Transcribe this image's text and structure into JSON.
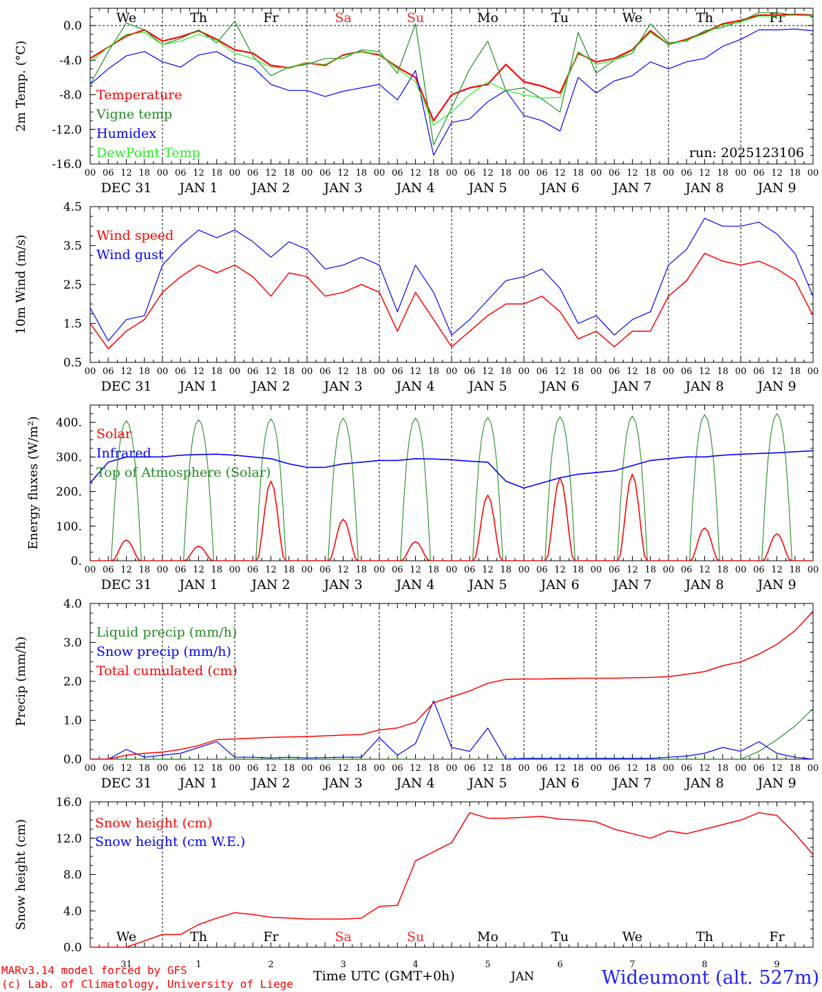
{
  "header": {
    "weekdays": [
      "We",
      "Th",
      "Fr",
      "Sa",
      "Su",
      "Mo",
      "Tu",
      "We",
      "Th",
      "Fr"
    ],
    "weekend_color": "#ff2020",
    "hour_ticks": [
      "00",
      "06",
      "12",
      "18"
    ],
    "last_hour": "00",
    "date_labels": [
      "DEC 31",
      "JAN  1",
      "JAN  2",
      "JAN  3",
      "JAN  4",
      "JAN  5",
      "JAN  6",
      "JAN  7",
      "JAN  8",
      "JAN  9"
    ],
    "day_numbers": [
      "31",
      "1",
      "2",
      "3",
      "4",
      "5",
      "6",
      "7",
      "8",
      "9"
    ],
    "month_label": "JAN"
  },
  "run_label": "run: 2025123106",
  "footer": {
    "credit1": "MARv3.14 model forced by GFS",
    "credit2": "(c) Lab. of Climatology, University of Liege",
    "xlabel": "Time UTC (GMT+0h)",
    "station": "Wideumont (alt. 527m)"
  },
  "chart_data": [
    {
      "type": "line",
      "id": "temp",
      "ylabel": "2m Temp. (°C)",
      "ylim": [
        -16,
        2
      ],
      "yticks": [
        "0.0",
        "-4.0",
        "-8.0",
        "-12.0",
        "-16.0"
      ],
      "ytick_values": [
        0,
        -4,
        -8,
        -12,
        -16
      ],
      "zero_line": true,
      "x_hours": [
        0,
        6,
        12,
        18,
        24,
        30,
        36,
        42,
        48,
        54,
        60,
        66,
        72,
        78,
        84,
        90,
        96,
        102,
        108,
        114,
        120,
        126,
        132,
        138,
        144,
        150,
        156,
        162,
        168,
        174,
        180,
        186,
        192,
        198,
        204,
        210,
        216,
        222,
        228,
        234,
        240
      ],
      "series": [
        {
          "name": "Temperature",
          "color": "#ff0000",
          "values": [
            -3.8,
            -2.5,
            -1.2,
            -0.5,
            -1.8,
            -1.3,
            -0.6,
            -1.6,
            -2.8,
            -3.2,
            -4.6,
            -4.9,
            -4.3,
            -4.6,
            -3.4,
            -3.0,
            -3.4,
            -4.8,
            -6.0,
            -11.0,
            -8.0,
            -7.2,
            -6.8,
            -4.5,
            -6.5,
            -7.0,
            -7.8,
            -3.2,
            -4.2,
            -3.8,
            -2.8,
            -0.6,
            -2.2,
            -1.6,
            -0.8,
            0.2,
            0.6,
            1.2,
            1.2,
            1.3,
            1.2
          ]
        },
        {
          "name": "Vigne temp",
          "color": "#228b22",
          "values": [
            -6.8,
            -3.0,
            0.3,
            -0.5,
            -2.2,
            -1.5,
            -0.5,
            -2.0,
            0.5,
            -3.5,
            -5.8,
            -4.8,
            -4.5,
            -3.8,
            -3.8,
            -2.8,
            -3.0,
            -5.5,
            0.2,
            -13.8,
            -9.5,
            -5.0,
            -1.8,
            -7.5,
            -7.2,
            -8.5,
            -10.0,
            -0.8,
            -5.5,
            -4.0,
            -3.2,
            0.2,
            -2.0,
            -1.8,
            -0.6,
            -0.2,
            0.5,
            1.5,
            1.5,
            1.2,
            1.2
          ]
        },
        {
          "name": "Humidex",
          "color": "#0000ff",
          "values": [
            -6.8,
            -5.0,
            -3.5,
            -3.0,
            -4.2,
            -4.8,
            -3.4,
            -3.0,
            -4.2,
            -4.8,
            -6.8,
            -7.5,
            -7.5,
            -8.2,
            -7.6,
            -7.2,
            -6.8,
            -8.6,
            -5.2,
            -15.0,
            -11.2,
            -10.8,
            -8.8,
            -7.5,
            -10.4,
            -11.0,
            -12.2,
            -6.0,
            -7.8,
            -6.4,
            -5.8,
            -4.2,
            -5.0,
            -4.2,
            -3.8,
            -2.4,
            -1.6,
            -0.5,
            -0.5,
            -0.4,
            -0.6
          ]
        },
        {
          "name": "DewPoint Temp",
          "color": "#20ee20",
          "values": [
            -4.2,
            -2.5,
            -1.0,
            -0.8,
            -2.2,
            -1.8,
            -1.0,
            -1.7,
            -3.2,
            -3.8,
            -4.8,
            -4.9,
            -4.3,
            -4.5,
            -3.5,
            -3.0,
            -3.3,
            -5.0,
            -6.5,
            -11.5,
            -10.0,
            -8.0,
            -6.5,
            -7.5,
            -8.0,
            -8.4,
            -8.3,
            -3.0,
            -4.5,
            -4.0,
            -2.9,
            -0.8,
            -2.2,
            -1.7,
            -0.9,
            0.1,
            0.4,
            1.1,
            1.1,
            1.2,
            1.1
          ]
        }
      ]
    },
    {
      "type": "line",
      "id": "wind",
      "ylabel": "10m Wind (m/s)",
      "ylim": [
        0.5,
        4.5
      ],
      "yticks": [
        "4.5",
        "3.5",
        "2.5",
        "1.5",
        "0.5"
      ],
      "ytick_values": [
        4.5,
        3.5,
        2.5,
        1.5,
        0.5
      ],
      "x_hours": [
        0,
        6,
        12,
        18,
        24,
        30,
        36,
        42,
        48,
        54,
        60,
        66,
        72,
        78,
        84,
        90,
        96,
        102,
        108,
        114,
        120,
        126,
        132,
        138,
        144,
        150,
        156,
        162,
        168,
        174,
        180,
        186,
        192,
        198,
        204,
        210,
        216,
        222,
        228,
        234,
        240
      ],
      "series": [
        {
          "name": "Wind speed",
          "color": "#ff0000",
          "values": [
            1.5,
            0.85,
            1.3,
            1.6,
            2.3,
            2.7,
            3.0,
            2.8,
            3.0,
            2.7,
            2.2,
            2.8,
            2.7,
            2.2,
            2.3,
            2.5,
            2.3,
            1.3,
            2.3,
            1.6,
            0.9,
            1.3,
            1.7,
            2.0,
            2.0,
            2.2,
            1.8,
            1.1,
            1.3,
            0.9,
            1.3,
            1.3,
            2.2,
            2.6,
            3.3,
            3.1,
            3.0,
            3.1,
            2.9,
            2.6,
            1.7
          ]
        },
        {
          "name": "Wind gust",
          "color": "#0000ff",
          "values": [
            1.9,
            1.05,
            1.6,
            1.7,
            3.0,
            3.5,
            3.9,
            3.7,
            3.9,
            3.6,
            3.2,
            3.6,
            3.4,
            2.9,
            3.0,
            3.2,
            3.0,
            1.8,
            3.0,
            2.3,
            1.2,
            1.6,
            2.1,
            2.6,
            2.7,
            2.9,
            2.4,
            1.5,
            1.7,
            1.2,
            1.6,
            1.8,
            3.0,
            3.4,
            4.2,
            4.0,
            4.0,
            4.1,
            3.8,
            3.3,
            2.2
          ]
        }
      ]
    },
    {
      "type": "line",
      "id": "flux",
      "ylabel": "Energy fluxes (W/m²)",
      "ylim": [
        0,
        450
      ],
      "yticks": [
        "400.",
        "300.",
        "200.",
        "100.",
        "0."
      ],
      "ytick_values": [
        400,
        300,
        200,
        100,
        0
      ],
      "solar_peaks": [
        60,
        42,
        230,
        120,
        55,
        190,
        240,
        250,
        95,
        78
      ],
      "toa_peaks": [
        405,
        408,
        410,
        412,
        412,
        414,
        416,
        418,
        422,
        425
      ],
      "infrared_hours": [
        0,
        6,
        12,
        18,
        24,
        30,
        36,
        42,
        48,
        54,
        60,
        66,
        72,
        78,
        84,
        90,
        96,
        102,
        108,
        114,
        120,
        126,
        132,
        138,
        144,
        150,
        156,
        162,
        168,
        174,
        180,
        186,
        192,
        198,
        204,
        210,
        216,
        222,
        228,
        234,
        240
      ],
      "infrared_values": [
        225,
        285,
        300,
        300,
        300,
        305,
        307,
        308,
        305,
        300,
        295,
        280,
        270,
        270,
        280,
        285,
        290,
        290,
        295,
        294,
        292,
        288,
        285,
        230,
        210,
        225,
        240,
        250,
        255,
        260,
        275,
        290,
        295,
        300,
        300,
        305,
        308,
        310,
        312,
        315,
        318
      ],
      "series": [
        {
          "name": "Solar",
          "color": "#ff0000"
        },
        {
          "name": "Infrared",
          "color": "#0000ff"
        },
        {
          "name": "Top of Atmosphere (Solar)",
          "color": "#228b22"
        }
      ]
    },
    {
      "type": "line",
      "id": "precip",
      "ylabel": "Precip (mm/h)",
      "ylim": [
        0,
        4
      ],
      "yticks": [
        "4.0",
        "3.0",
        "2.0",
        "1.0",
        "0.0"
      ],
      "ytick_values": [
        4,
        3,
        2,
        1,
        0
      ],
      "x_hours": [
        0,
        6,
        12,
        18,
        24,
        30,
        36,
        42,
        48,
        54,
        60,
        66,
        72,
        78,
        84,
        90,
        96,
        102,
        108,
        114,
        120,
        126,
        132,
        138,
        144,
        150,
        156,
        162,
        168,
        174,
        180,
        186,
        192,
        198,
        204,
        210,
        216,
        222,
        228,
        234,
        240
      ],
      "series": [
        {
          "name": "Liquid precip (mm/h)",
          "color": "#228b22",
          "values": [
            0,
            0,
            0,
            0,
            0,
            0,
            0,
            0,
            0,
            0,
            0,
            0,
            0,
            0,
            0,
            0,
            0,
            0,
            0,
            0,
            0,
            0,
            0,
            0,
            0,
            0,
            0,
            0,
            0,
            0,
            0,
            0,
            0,
            0,
            0,
            0,
            0,
            0.2,
            0.5,
            0.85,
            1.3
          ]
        },
        {
          "name": "Snow precip (mm/h)",
          "color": "#0000ff",
          "values": [
            0,
            0,
            0.25,
            0.05,
            0.1,
            0.15,
            0.3,
            0.45,
            0.05,
            0.05,
            0.03,
            0.05,
            0.03,
            0.04,
            0.05,
            0.05,
            0.55,
            0.1,
            0.4,
            1.5,
            0.3,
            0.2,
            0.8,
            0,
            0.02,
            0.02,
            0.02,
            0.02,
            0.02,
            0.02,
            0.02,
            0.02,
            0.05,
            0.08,
            0.15,
            0.3,
            0.2,
            0.45,
            0.15,
            0.05,
            0
          ]
        },
        {
          "name": "Total cumulated (cm)",
          "color": "#ff0000",
          "values": [
            0,
            0,
            0.1,
            0.15,
            0.18,
            0.25,
            0.35,
            0.5,
            0.52,
            0.54,
            0.56,
            0.57,
            0.58,
            0.6,
            0.62,
            0.63,
            0.75,
            0.8,
            0.95,
            1.45,
            1.6,
            1.75,
            1.95,
            2.05,
            2.06,
            2.06,
            2.07,
            2.08,
            2.08,
            2.08,
            2.09,
            2.1,
            2.12,
            2.18,
            2.25,
            2.4,
            2.5,
            2.7,
            2.95,
            3.3,
            3.8
          ]
        }
      ]
    },
    {
      "type": "line",
      "id": "snow",
      "ylabel": "Snow height (cm)",
      "ylim": [
        0,
        16
      ],
      "yticks": [
        "16.0",
        "12.0",
        "8.0",
        "4.0",
        "0.0"
      ],
      "ytick_values": [
        16,
        12,
        8,
        4,
        0
      ],
      "x_hours": [
        0,
        6,
        12,
        18,
        24,
        30,
        36,
        42,
        48,
        54,
        60,
        66,
        72,
        78,
        84,
        90,
        96,
        102,
        108,
        114,
        120,
        126,
        132,
        138,
        144,
        150,
        156,
        162,
        168,
        174,
        180,
        186,
        192,
        198,
        204,
        210,
        216,
        222,
        228,
        234,
        240
      ],
      "series": [
        {
          "name": "Snow height (cm)",
          "color": "#ff0000",
          "values": [
            0,
            0,
            0,
            0.7,
            1.4,
            1.4,
            2.5,
            3.2,
            3.8,
            3.6,
            3.3,
            3.2,
            3.1,
            3.1,
            3.1,
            3.2,
            4.5,
            4.6,
            9.5,
            10.5,
            11.5,
            14.8,
            14.2,
            14.2,
            14.3,
            14.4,
            14.1,
            14.0,
            13.8,
            13.0,
            12.5,
            12.0,
            12.8,
            12.5,
            13.0,
            13.5,
            14.0,
            14.8,
            14.5,
            12.5,
            10.2
          ]
        },
        {
          "name": "Snow height (cm W.E.)",
          "color": "#0000ff"
        }
      ]
    }
  ]
}
